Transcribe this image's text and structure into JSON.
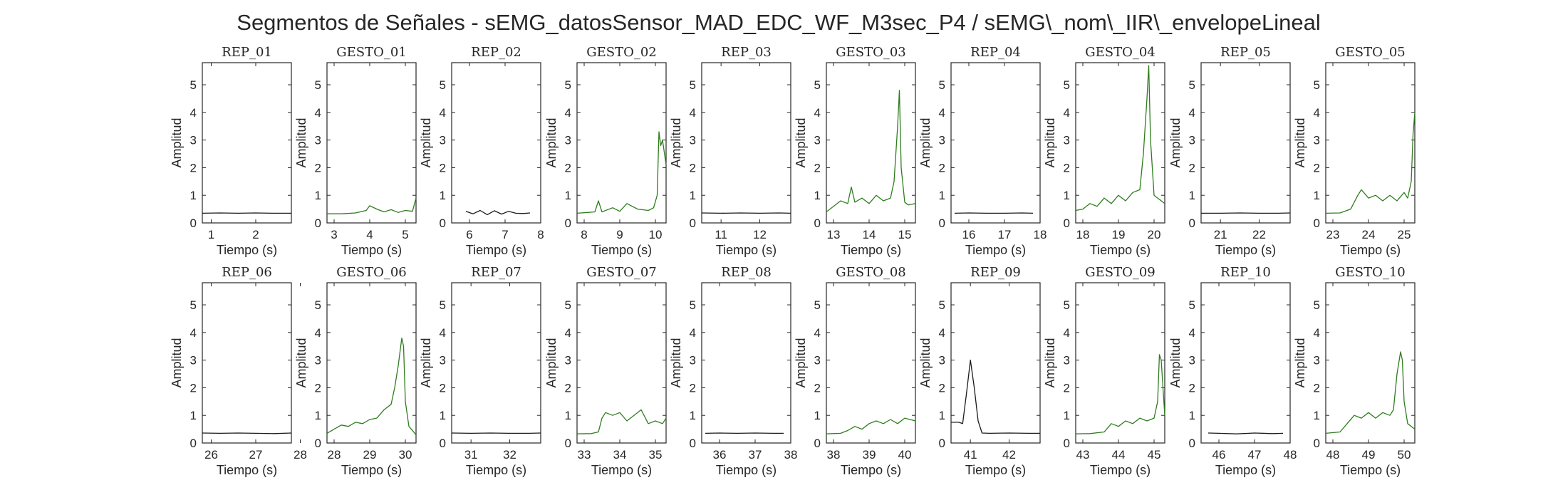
{
  "chart_data": {
    "type": "line",
    "title": "Segmentos de Señales - sEMG_datosSensor_MAD_EDC_WF_M3sec_P4 / sEMG\\_nom\\_IIR\\_envelopeLineal",
    "ylim": [
      0,
      5.8
    ],
    "yticks": [
      0,
      1,
      2,
      3,
      4,
      5
    ],
    "grid": false,
    "colors": {
      "rep": "#1a1a1a",
      "gesto": "#2e7d1e"
    },
    "subplots": [
      {
        "title": "REP_01",
        "xlabel": "Tiempo (s)",
        "ylabel": "Amplitud",
        "xlim": [
          0.8,
          2.8
        ],
        "xticks": [
          1,
          2
        ],
        "kind": "rep",
        "x": [
          0.8,
          1.2,
          1.6,
          2.0,
          2.4,
          2.8
        ],
        "y": [
          0.35,
          0.36,
          0.35,
          0.36,
          0.35,
          0.35
        ]
      },
      {
        "title": "GESTO_01",
        "xlabel": "Tiempo (s)",
        "ylabel": "Amplitud",
        "xlim": [
          2.8,
          5.3
        ],
        "xticks": [
          3,
          4,
          5
        ],
        "kind": "gesto",
        "x": [
          2.8,
          3.2,
          3.6,
          3.9,
          4.0,
          4.2,
          4.4,
          4.6,
          4.8,
          5.0,
          5.2,
          5.3
        ],
        "y": [
          0.33,
          0.33,
          0.36,
          0.45,
          0.62,
          0.5,
          0.4,
          0.48,
          0.38,
          0.45,
          0.42,
          0.9
        ]
      },
      {
        "title": "REP_02",
        "xlabel": "Tiempo (s)",
        "ylabel": "Amplitud",
        "xlim": [
          5.5,
          8.0
        ],
        "xticks": [
          6,
          7,
          8
        ],
        "kind": "rep",
        "x": [
          5.9,
          6.1,
          6.3,
          6.5,
          6.7,
          6.9,
          7.1,
          7.3,
          7.5,
          7.7
        ],
        "y": [
          0.42,
          0.33,
          0.45,
          0.3,
          0.44,
          0.32,
          0.42,
          0.35,
          0.34,
          0.36
        ]
      },
      {
        "title": "GESTO_02",
        "xlabel": "Tiempo (s)",
        "ylabel": "Amplitud",
        "xlim": [
          7.8,
          10.3
        ],
        "xticks": [
          8,
          9,
          10
        ],
        "kind": "gesto",
        "x": [
          7.8,
          8.1,
          8.3,
          8.4,
          8.5,
          8.8,
          9.0,
          9.2,
          9.5,
          9.8,
          9.95,
          10.05,
          10.1,
          10.15,
          10.2,
          10.3
        ],
        "y": [
          0.35,
          0.38,
          0.4,
          0.8,
          0.4,
          0.55,
          0.42,
          0.7,
          0.5,
          0.45,
          0.55,
          1.0,
          3.3,
          2.8,
          3.0,
          2.1
        ]
      },
      {
        "title": "REP_03",
        "xlabel": "Tiempo (s)",
        "ylabel": "Amplitud",
        "xlim": [
          10.5,
          12.8
        ],
        "xticks": [
          11,
          12
        ],
        "kind": "rep",
        "x": [
          10.5,
          11.0,
          11.5,
          12.0,
          12.5,
          12.8
        ],
        "y": [
          0.36,
          0.35,
          0.36,
          0.35,
          0.36,
          0.35
        ]
      },
      {
        "title": "GESTO_03",
        "xlabel": "Tiempo (s)",
        "ylabel": "Amplitud",
        "xlim": [
          12.8,
          15.3
        ],
        "xticks": [
          13,
          14,
          15
        ],
        "kind": "gesto",
        "x": [
          12.8,
          13.0,
          13.2,
          13.4,
          13.5,
          13.6,
          13.8,
          14.0,
          14.2,
          14.4,
          14.6,
          14.7,
          14.8,
          14.85,
          14.9,
          15.0,
          15.1,
          15.3
        ],
        "y": [
          0.4,
          0.6,
          0.8,
          0.7,
          1.3,
          0.75,
          0.9,
          0.7,
          1.0,
          0.8,
          0.9,
          1.5,
          3.5,
          4.8,
          2.0,
          0.75,
          0.65,
          0.7
        ]
      },
      {
        "title": "REP_04",
        "xlabel": "Tiempo (s)",
        "ylabel": "Amplitud",
        "xlim": [
          15.5,
          18.0
        ],
        "xticks": [
          16,
          17,
          18
        ],
        "kind": "rep",
        "x": [
          15.6,
          16.0,
          16.5,
          17.0,
          17.5,
          17.8
        ],
        "y": [
          0.35,
          0.36,
          0.35,
          0.35,
          0.36,
          0.35
        ]
      },
      {
        "title": "GESTO_04",
        "xlabel": "Tiempo (s)",
        "ylabel": "Amplitud",
        "xlim": [
          17.8,
          20.3
        ],
        "xticks": [
          18,
          19,
          20
        ],
        "kind": "gesto",
        "x": [
          17.8,
          18.0,
          18.2,
          18.4,
          18.6,
          18.8,
          19.0,
          19.2,
          19.4,
          19.6,
          19.7,
          19.8,
          19.85,
          19.9,
          20.0,
          20.1,
          20.3
        ],
        "y": [
          0.45,
          0.5,
          0.7,
          0.6,
          0.9,
          0.7,
          1.0,
          0.8,
          1.1,
          1.2,
          2.5,
          4.5,
          5.7,
          3.0,
          1.0,
          0.9,
          0.7
        ]
      },
      {
        "title": "REP_05",
        "xlabel": "Tiempo (s)",
        "ylabel": "Amplitud",
        "xlim": [
          20.5,
          22.8
        ],
        "xticks": [
          21,
          22
        ],
        "kind": "rep",
        "x": [
          20.5,
          21.0,
          21.5,
          22.0,
          22.5,
          22.8
        ],
        "y": [
          0.35,
          0.35,
          0.36,
          0.35,
          0.35,
          0.36
        ]
      },
      {
        "title": "GESTO_05",
        "xlabel": "Tiempo (s)",
        "ylabel": "Amplitud",
        "xlim": [
          22.8,
          25.3
        ],
        "xticks": [
          23,
          24,
          25
        ],
        "kind": "gesto",
        "x": [
          22.8,
          23.2,
          23.5,
          23.7,
          23.8,
          24.0,
          24.2,
          24.4,
          24.6,
          24.8,
          25.0,
          25.1,
          25.2,
          25.25,
          25.3
        ],
        "y": [
          0.35,
          0.36,
          0.5,
          1.0,
          1.2,
          0.9,
          1.0,
          0.8,
          1.0,
          0.8,
          1.1,
          0.9,
          1.5,
          3.2,
          4.0
        ]
      },
      {
        "title": "REP_06",
        "xlabel": "Tiempo (s)",
        "ylabel": "Amplitud",
        "xlim": [
          25.8,
          27.8
        ],
        "xticks": [
          26,
          27,
          28
        ],
        "kind": "rep",
        "x": [
          25.8,
          26.2,
          26.6,
          27.0,
          27.4,
          27.8
        ],
        "y": [
          0.36,
          0.35,
          0.36,
          0.35,
          0.34,
          0.36
        ]
      },
      {
        "title": "GESTO_06",
        "xlabel": "Tiempo (s)",
        "ylabel": "Amplitud",
        "xlim": [
          27.8,
          30.3
        ],
        "xticks": [
          28,
          29,
          30
        ],
        "kind": "gesto",
        "x": [
          27.8,
          28.0,
          28.2,
          28.4,
          28.6,
          28.8,
          29.0,
          29.2,
          29.4,
          29.6,
          29.7,
          29.8,
          29.9,
          29.95,
          30.0,
          30.1,
          30.3
        ],
        "y": [
          0.35,
          0.5,
          0.65,
          0.6,
          0.75,
          0.7,
          0.85,
          0.9,
          1.2,
          1.4,
          2.0,
          2.8,
          3.8,
          3.5,
          1.5,
          0.6,
          0.3
        ]
      },
      {
        "title": "REP_07",
        "xlabel": "Tiempo (s)",
        "ylabel": "Amplitud",
        "xlim": [
          30.5,
          32.8
        ],
        "xticks": [
          31,
          32
        ],
        "kind": "rep",
        "x": [
          30.5,
          31.0,
          31.5,
          32.0,
          32.5,
          32.8
        ],
        "y": [
          0.36,
          0.35,
          0.36,
          0.35,
          0.35,
          0.36
        ]
      },
      {
        "title": "GESTO_07",
        "xlabel": "Tiempo (s)",
        "ylabel": "Amplitud",
        "xlim": [
          32.8,
          35.3
        ],
        "xticks": [
          33,
          34,
          35
        ],
        "kind": "gesto",
        "x": [
          32.8,
          33.2,
          33.4,
          33.5,
          33.6,
          33.8,
          34.0,
          34.2,
          34.4,
          34.6,
          34.8,
          35.0,
          35.2,
          35.3
        ],
        "y": [
          0.33,
          0.34,
          0.4,
          0.9,
          1.1,
          1.0,
          1.1,
          0.8,
          1.0,
          1.2,
          0.7,
          0.8,
          0.7,
          0.9
        ]
      },
      {
        "title": "REP_08",
        "xlabel": "Tiempo (s)",
        "ylabel": "Amplitud",
        "xlim": [
          35.5,
          38.0
        ],
        "xticks": [
          36,
          37,
          38
        ],
        "kind": "rep",
        "x": [
          35.6,
          36.0,
          36.5,
          37.0,
          37.5,
          37.8
        ],
        "y": [
          0.35,
          0.36,
          0.35,
          0.36,
          0.35,
          0.35
        ]
      },
      {
        "title": "GESTO_08",
        "xlabel": "Tiempo (s)",
        "ylabel": "Amplitud",
        "xlim": [
          37.8,
          40.3
        ],
        "xticks": [
          38,
          39,
          40
        ],
        "kind": "gesto",
        "x": [
          37.8,
          38.2,
          38.4,
          38.6,
          38.8,
          39.0,
          39.2,
          39.4,
          39.6,
          39.8,
          40.0,
          40.3
        ],
        "y": [
          0.33,
          0.35,
          0.45,
          0.6,
          0.5,
          0.7,
          0.8,
          0.7,
          0.85,
          0.7,
          0.9,
          0.8
        ]
      },
      {
        "title": "REP_09",
        "xlabel": "Tiempo (s)",
        "ylabel": "Amplitud",
        "xlim": [
          40.5,
          42.8
        ],
        "xticks": [
          41,
          42
        ],
        "kind": "rep",
        "x": [
          40.5,
          40.7,
          40.8,
          40.9,
          41.0,
          41.1,
          41.2,
          41.3,
          41.5,
          42.0,
          42.5,
          42.8
        ],
        "y": [
          0.75,
          0.75,
          0.7,
          1.8,
          3.0,
          2.0,
          0.8,
          0.36,
          0.35,
          0.36,
          0.35,
          0.35
        ]
      },
      {
        "title": "GESTO_09",
        "xlabel": "Tiempo (s)",
        "ylabel": "Amplitud",
        "xlim": [
          42.8,
          45.3
        ],
        "xticks": [
          43,
          44,
          45
        ],
        "kind": "gesto",
        "x": [
          42.8,
          43.2,
          43.6,
          43.8,
          44.0,
          44.2,
          44.4,
          44.6,
          44.8,
          45.0,
          45.1,
          45.15,
          45.2,
          45.3
        ],
        "y": [
          0.33,
          0.34,
          0.4,
          0.7,
          0.6,
          0.8,
          0.7,
          0.9,
          0.8,
          0.9,
          1.5,
          3.2,
          3.0,
          1.0
        ]
      },
      {
        "title": "REP_10",
        "xlabel": "Tiempo (s)",
        "ylabel": "Amplitud",
        "xlim": [
          45.5,
          48.0
        ],
        "xticks": [
          46,
          47,
          48
        ],
        "kind": "rep",
        "x": [
          45.7,
          46.0,
          46.5,
          47.0,
          47.5,
          47.8
        ],
        "y": [
          0.36,
          0.35,
          0.33,
          0.36,
          0.34,
          0.35
        ]
      },
      {
        "title": "GESTO_10",
        "xlabel": "Tiempo (s)",
        "ylabel": "Amplitud",
        "xlim": [
          47.8,
          50.3
        ],
        "xticks": [
          48,
          49,
          50
        ],
        "kind": "gesto",
        "x": [
          47.8,
          48.2,
          48.4,
          48.6,
          48.8,
          49.0,
          49.2,
          49.4,
          49.6,
          49.7,
          49.8,
          49.9,
          49.95,
          50.0,
          50.1,
          50.3
        ],
        "y": [
          0.35,
          0.4,
          0.7,
          1.0,
          0.9,
          1.1,
          0.9,
          1.1,
          1.0,
          1.2,
          2.5,
          3.3,
          3.0,
          1.5,
          0.7,
          0.5
        ]
      }
    ]
  }
}
